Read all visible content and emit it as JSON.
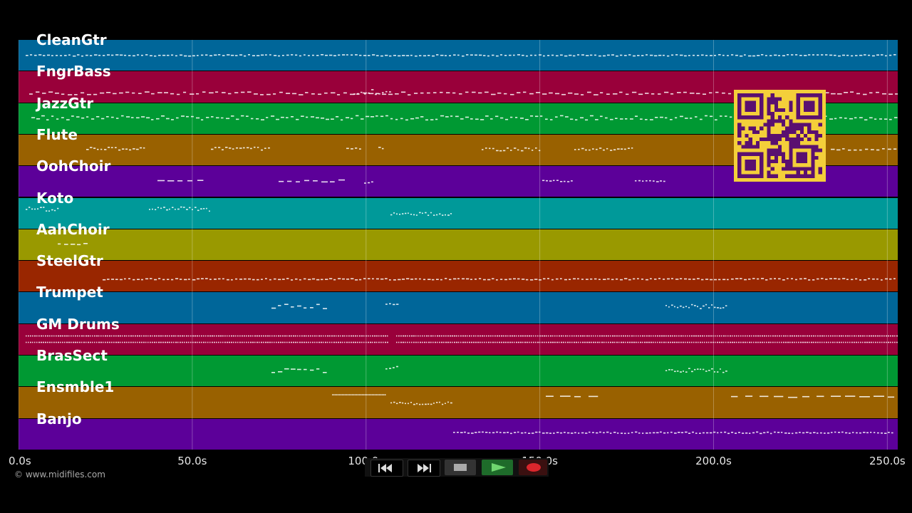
{
  "tracks": [
    {
      "name": "CleanGtr",
      "color": "#006699"
    },
    {
      "name": "FngrBass",
      "color": "#99003a"
    },
    {
      "name": "JazzGtr",
      "color": "#009933"
    },
    {
      "name": "Flute",
      "color": "#996100"
    },
    {
      "name": "OohChoir",
      "color": "#5c0099"
    },
    {
      "name": "Koto",
      "color": "#009999"
    },
    {
      "name": "AahChoir",
      "color": "#999900"
    },
    {
      "name": "SteelGtr",
      "color": "#992600"
    },
    {
      "name": "Trumpet",
      "color": "#006699"
    },
    {
      "name": "GM Drums",
      "color": "#99003a"
    },
    {
      "name": "BrasSect",
      "color": "#009933"
    },
    {
      "name": "Ensmble1",
      "color": "#996100"
    },
    {
      "name": "Banjo",
      "color": "#5c0099"
    }
  ],
  "timeline": {
    "duration_s": 253,
    "ticks": [
      "0.0s",
      "50.0s",
      "100.0s",
      "150.0s",
      "200.0s",
      "250.0s"
    ]
  },
  "copyright": "© www.midifiles.com",
  "controls": [
    {
      "name": "rewind-button",
      "icon": "rewind-icon"
    },
    {
      "name": "fast-forward-button",
      "icon": "fast-forward-icon"
    },
    {
      "name": "stop-button",
      "icon": "stop-icon"
    },
    {
      "name": "play-button",
      "icon": "play-icon"
    },
    {
      "name": "record-button",
      "icon": "record-icon"
    }
  ],
  "qr_code": {
    "icon": "qr-code-icon",
    "color": "#f4cf3a"
  }
}
